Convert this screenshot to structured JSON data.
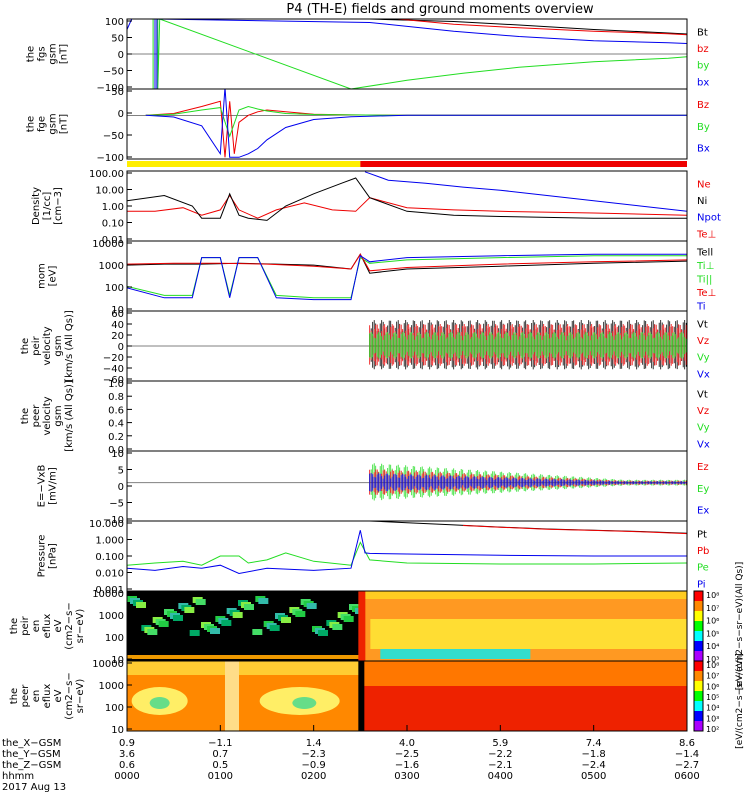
{
  "title": "P4 (TH-E) fields and ground moments overview",
  "colors": {
    "black": "#000000",
    "red": "#ee0000",
    "green": "#22dd22",
    "blue": "#0000ee",
    "yellow": "#ffee00",
    "bar_red": "#ee0000"
  },
  "chart_data": [
    {
      "type": "line",
      "ylabel_lines": [
        "the",
        "fgs",
        "gsm",
        "[nT]"
      ],
      "ylim": [
        -100,
        100
      ],
      "ytick_labels": [
        "100",
        "50",
        "0",
        "−50",
        "−100"
      ],
      "series": [
        {
          "name": "Bt",
          "color": "#000000",
          "x": [
            2.6,
            3.5,
            4.2,
            5.0,
            5.8,
            6.0
          ],
          "y": [
            100,
            93,
            83,
            70,
            60,
            57
          ]
        },
        {
          "name": "bz",
          "color": "#ee0000",
          "x": [
            2.9,
            3.5,
            4.2,
            5.0,
            5.8,
            6.0
          ],
          "y": [
            100,
            85,
            75,
            65,
            58,
            55
          ]
        },
        {
          "name": "by",
          "color": "#22dd22",
          "x": [
            0.25,
            0.28,
            0.28,
            0.3,
            0.3,
            0.33,
            0.33,
            0.35,
            2.4,
            3.0,
            3.6,
            4.2,
            5.0,
            5.8,
            6.0
          ],
          "y": [
            100,
            100,
            -100,
            -100,
            100,
            100,
            -100,
            100,
            -100,
            -75,
            -55,
            -38,
            -22,
            -12,
            -8
          ]
        },
        {
          "name": "bx",
          "color": "#0000ee",
          "x": [
            0.0,
            0.05,
            0.3,
            0.3,
            0.32,
            0.32,
            2.6,
            3.5,
            4.2,
            5.0,
            5.8,
            6.0
          ],
          "y": [
            70,
            100,
            100,
            -100,
            -100,
            100,
            90,
            65,
            50,
            38,
            32,
            30
          ]
        }
      ]
    },
    {
      "type": "line",
      "ylabel_lines": [
        "the",
        "fge",
        "gsm",
        "[nT]"
      ],
      "ylim": [
        -125,
        75
      ],
      "ytick_labels": [
        "50",
        "0",
        "−50",
        "−100"
      ],
      "series": [
        {
          "name": "Bz",
          "color": "#ee0000",
          "x": [
            0.2,
            0.5,
            0.8,
            1.0,
            1.05,
            1.1,
            1.15,
            1.2,
            1.3,
            1.4,
            1.5,
            1.7,
            2.0,
            2.4,
            3.0,
            4.0,
            5.0,
            6.0
          ],
          "y": [
            0,
            5,
            25,
            40,
            -120,
            40,
            -110,
            -20,
            0,
            10,
            15,
            10,
            3,
            1,
            0,
            0,
            0,
            0
          ]
        },
        {
          "name": "By",
          "color": "#22dd22",
          "x": [
            0.2,
            0.5,
            0.8,
            1.0,
            1.1,
            1.2,
            1.3,
            1.4,
            1.5,
            1.7,
            2.0,
            2.4,
            3.0,
            4.0,
            5.0,
            6.0
          ],
          "y": [
            0,
            3,
            15,
            22,
            -60,
            15,
            25,
            18,
            12,
            5,
            2,
            1,
            0,
            0,
            0,
            0
          ]
        },
        {
          "name": "Bx",
          "color": "#0000ee",
          "x": [
            0.2,
            0.5,
            0.8,
            1.0,
            1.05,
            1.1,
            1.2,
            1.3,
            1.4,
            1.5,
            1.7,
            2.0,
            2.4,
            3.0,
            4.0,
            5.0,
            6.0
          ],
          "y": [
            0,
            -5,
            -30,
            -110,
            80,
            -120,
            -120,
            -110,
            -95,
            -70,
            -35,
            -12,
            -4,
            0,
            0,
            0,
            0
          ]
        }
      ]
    },
    {
      "type": "line",
      "ylog": true,
      "ylabel_lines": [
        "Density",
        "[1/cc]",
        "[cm−3]"
      ],
      "ylim": [
        0.01,
        100
      ],
      "ytick_labels": [
        "100.00",
        "10.00",
        "1.00",
        "0.10",
        "0.01"
      ],
      "series": [
        {
          "name": "Ne",
          "color": "#ee0000",
          "x": [
            0.0,
            0.3,
            0.6,
            0.8,
            1.0,
            1.1,
            1.2,
            1.4,
            1.6,
            1.9,
            2.2,
            2.45,
            2.6,
            3.0,
            3.5,
            4.0,
            5.0,
            6.0
          ],
          "y": [
            0.5,
            0.5,
            0.8,
            0.3,
            0.6,
            4,
            0.6,
            0.2,
            0.6,
            1.5,
            0.6,
            0.5,
            3,
            0.8,
            0.6,
            0.5,
            0.4,
            0.3
          ]
        },
        {
          "name": "Ni",
          "color": "#000000",
          "x": [
            0.0,
            0.4,
            0.7,
            0.8,
            1.0,
            1.1,
            1.2,
            1.3,
            1.5,
            1.7,
            2.0,
            2.3,
            2.45,
            2.6,
            3.0,
            3.5,
            4.0,
            5.0,
            6.0
          ],
          "y": [
            2,
            4,
            1,
            0.2,
            0.2,
            5,
            0.3,
            0.2,
            0.15,
            1,
            5,
            20,
            40,
            3,
            0.5,
            0.3,
            0.25,
            0.2,
            0.2
          ]
        },
        {
          "name": "Npot",
          "color": "#0000ee",
          "x": [
            2.55,
            2.8,
            3.2,
            3.6,
            4.0,
            4.5,
            5.0,
            5.5,
            6.0
          ],
          "y": [
            90,
            30,
            20,
            12,
            8,
            4,
            2,
            1,
            0.5
          ]
        },
        {
          "name": "Te⊥",
          "color": "#ee0000",
          "x": [],
          "y": []
        }
      ]
    },
    {
      "type": "line",
      "ylog": true,
      "ylabel_lines": [
        "mom",
        "[eV]"
      ],
      "ylim": [
        3,
        15000
      ],
      "ytick_labels": [
        "10000",
        "1000",
        "100",
        "10"
      ],
      "series": [
        {
          "name": "Tell",
          "color": "#000000",
          "x": [
            0.0,
            0.4,
            0.8,
            1.2,
            1.6,
            2.0,
            2.4,
            2.5,
            2.6,
            3.0,
            4.0,
            5.0,
            6.0
          ],
          "y": [
            800,
            900,
            900,
            1000,
            900,
            800,
            500,
            3000,
            300,
            500,
            700,
            1000,
            1300
          ]
        },
        {
          "name": "Ti⊥",
          "color": "#22dd22",
          "x": [
            0.0,
            0.4,
            0.7,
            0.8,
            1.0,
            1.1,
            1.2,
            1.4,
            1.6,
            2.0,
            2.4,
            2.5,
            2.6,
            3.0,
            4.0,
            5.0,
            6.0
          ],
          "y": [
            60,
            20,
            20,
            2000,
            2000,
            20,
            2000,
            2000,
            20,
            15,
            15,
            2000,
            1000,
            1500,
            2000,
            2500,
            2500
          ]
        },
        {
          "name": "Ti||",
          "color": "#22dd22",
          "x": [],
          "y": []
        },
        {
          "name": "Te⊥",
          "color": "#ee0000",
          "x": [
            0.0,
            0.5,
            1.0,
            1.5,
            2.0,
            2.4,
            2.5,
            2.6,
            3.0,
            4.0,
            5.0,
            6.0
          ],
          "y": [
            900,
            1000,
            1000,
            900,
            700,
            500,
            3000,
            400,
            600,
            900,
            1200,
            1500
          ]
        },
        {
          "name": "Ti",
          "color": "#0000ee",
          "x": [
            0.0,
            0.4,
            0.7,
            0.8,
            1.0,
            1.1,
            1.2,
            1.4,
            1.6,
            2.0,
            2.4,
            2.5,
            2.6,
            3.0,
            4.0,
            5.0,
            6.0
          ],
          "y": [
            50,
            15,
            15,
            2000,
            2000,
            15,
            2000,
            2000,
            15,
            12,
            12,
            2500,
            1200,
            2000,
            2500,
            3000,
            3000
          ]
        }
      ]
    },
    {
      "type": "line",
      "ylabel_lines": [
        "the",
        "peir",
        "velocity",
        "gsm",
        "[km/s (All Qs)]"
      ],
      "ylim": [
        -60,
        60
      ],
      "ytick_labels": [
        "60",
        "40",
        "20",
        "0",
        "−20",
        "−40",
        "−60"
      ],
      "series": [
        {
          "name": "Vt",
          "color": "#000000",
          "x": [
            2.6,
            6.0
          ],
          "y": [
            0,
            0
          ]
        },
        {
          "name": "Vz",
          "color": "#ee0000",
          "x": [
            2.6,
            6.0
          ],
          "y": [
            0,
            0
          ]
        },
        {
          "name": "Vy",
          "color": "#22dd22",
          "x": [
            2.6,
            6.0
          ],
          "y": [
            0,
            0
          ]
        },
        {
          "name": "Vx",
          "color": "#0000ee",
          "x": [
            2.6,
            6.0
          ],
          "y": [
            0,
            0
          ]
        }
      ]
    },
    {
      "type": "line",
      "ylabel_lines": [
        "the",
        "peer",
        "velocity",
        "gsm",
        "[km/s (All Qs)]"
      ],
      "ylim": [
        0,
        1
      ],
      "ytick_labels": [
        "1.0",
        "0.8",
        "0.6",
        "0.4",
        "0.2",
        "0.0"
      ],
      "series": [
        {
          "name": "Vt",
          "color": "#000000",
          "x": [],
          "y": []
        },
        {
          "name": "Vz",
          "color": "#ee0000",
          "x": [],
          "y": []
        },
        {
          "name": "Vy",
          "color": "#22dd22",
          "x": [],
          "y": []
        },
        {
          "name": "Vx",
          "color": "#0000ee",
          "x": [],
          "y": []
        }
      ]
    },
    {
      "type": "line",
      "ylabel_lines": [
        "E=−VxB",
        "[mV/m]"
      ],
      "ylim": [
        -12,
        10
      ],
      "ytick_labels": [
        "10",
        "5",
        "0",
        "−5",
        "−10"
      ],
      "series": [
        {
          "name": "Ez",
          "color": "#ee0000",
          "x": [
            2.6,
            6.0
          ],
          "y": [
            0,
            0
          ]
        },
        {
          "name": "Ey",
          "color": "#22dd22",
          "x": [
            2.6,
            6.0
          ],
          "y": [
            0,
            0
          ]
        },
        {
          "name": "Ex",
          "color": "#0000ee",
          "x": [
            2.6,
            6.0
          ],
          "y": [
            0,
            0
          ]
        }
      ]
    },
    {
      "type": "line",
      "ylog": true,
      "ylabel_lines": [
        "Pressure",
        "[nPa]"
      ],
      "ylim": [
        0.001,
        10
      ],
      "ytick_labels": [
        "10.000",
        "1.000",
        "0.100",
        "0.010",
        "0.001"
      ],
      "series": [
        {
          "name": "Pt",
          "color": "#000000",
          "x": [
            2.6,
            3.0,
            3.5,
            4.0,
            4.5,
            5.0,
            5.5,
            6.0
          ],
          "y": [
            10,
            8,
            6,
            4.5,
            3.5,
            3,
            2.5,
            2
          ]
        },
        {
          "name": "Pb",
          "color": "#ee0000",
          "x": [
            3.6,
            4.0,
            4.5,
            5.0,
            5.5,
            6.0
          ],
          "y": [
            5.5,
            4.4,
            3.4,
            2.9,
            2.4,
            1.9
          ]
        },
        {
          "name": "Pe",
          "color": "#22dd22",
          "x": [
            0.0,
            0.3,
            0.6,
            0.8,
            1.0,
            1.2,
            1.3,
            1.5,
            1.7,
            2.0,
            2.4,
            2.5,
            2.6,
            3.0,
            4.0,
            5.0,
            6.0
          ],
          "y": [
            0.03,
            0.04,
            0.05,
            0.03,
            0.1,
            0.1,
            0.04,
            0.06,
            0.15,
            0.05,
            0.03,
            0.6,
            0.06,
            0.04,
            0.035,
            0.035,
            0.04
          ]
        },
        {
          "name": "Pi",
          "color": "#0000ee",
          "x": [
            0.0,
            0.3,
            0.6,
            0.8,
            1.0,
            1.2,
            1.5,
            2.0,
            2.4,
            2.5,
            2.55,
            2.6,
            3.0,
            4.0,
            5.0,
            6.0
          ],
          "y": [
            0.02,
            0.015,
            0.025,
            0.02,
            0.03,
            0.01,
            0.02,
            0.015,
            0.02,
            3,
            0.15,
            0.14,
            0.13,
            0.11,
            0.1,
            0.1
          ]
        }
      ]
    },
    {
      "type": "heatmap",
      "ylog": true,
      "ylabel_lines": [
        "the",
        "peir",
        "en",
        "eflux",
        "eV",
        "(cm2−s−",
        "sr−eV)"
      ],
      "ylim": [
        7,
        12000
      ],
      "ytick_labels": [
        "10000",
        "1000",
        "100",
        "10"
      ],
      "colorbar_label": "[eV/(cm2−s−sr−eV)(All Qs)]",
      "colorbar_ticks": [
        "10⁸",
        "10⁷",
        "10⁶",
        "10⁵",
        "10⁴",
        "10³"
      ]
    },
    {
      "type": "heatmap",
      "ylog": true,
      "ylabel_lines": [
        "the",
        "peer",
        "en",
        "eflux",
        "eV",
        "(cm2−s−",
        "sr−eV)"
      ],
      "ylim": [
        7,
        12000
      ],
      "ytick_labels": [
        "10000",
        "1000",
        "100",
        "10"
      ],
      "colorbar_label": "[eV/(cm2−s−sr−eV)]",
      "colorbar_ticks": [
        "10⁸",
        "10⁷",
        "10⁶",
        "10⁵",
        "10⁴",
        "10³",
        "10²"
      ]
    }
  ],
  "top_legend": [
    "Bt",
    "bz",
    "by",
    "bx"
  ],
  "panel2_legend": [
    "Bz",
    "By",
    "Bx"
  ],
  "density_legend": [
    "Ne",
    "Ni",
    "Npot",
    "Te⊥"
  ],
  "mom_legend": [
    "Tell",
    "Ti⊥",
    "Ti||"
  ],
  "x_axis": {
    "xlim": [
      0,
      6
    ],
    "tick_positions": [
      0,
      1,
      2,
      3,
      4,
      5,
      6
    ],
    "rows": [
      {
        "label": "the_X−GSM",
        "values": [
          "0.9",
          "−1.1",
          "1.4",
          "4.0",
          "5.9",
          "7.4",
          "8.6"
        ]
      },
      {
        "label": "the_Y−GSM",
        "values": [
          "3.6",
          "0.7",
          "−2.3",
          "−2.5",
          "−2.2",
          "−1.8",
          "−1.4"
        ]
      },
      {
        "label": "the_Z−GSM",
        "values": [
          "0.6",
          "0.5",
          "−0.9",
          "−1.6",
          "−2.1",
          "−2.4",
          "−2.7"
        ]
      },
      {
        "label": "hhmm",
        "values": [
          "0000",
          "0100",
          "0200",
          "0300",
          "0400",
          "0500",
          "0600"
        ]
      }
    ],
    "date": "2017 Aug 13"
  }
}
